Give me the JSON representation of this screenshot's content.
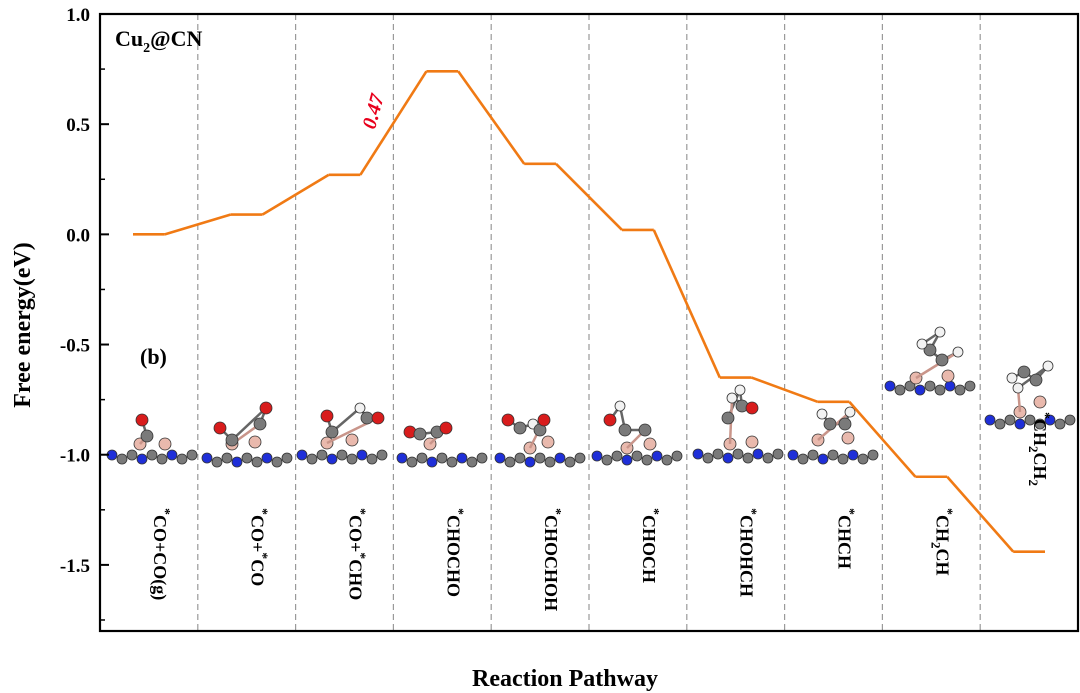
{
  "chart_data": {
    "type": "line",
    "title": "",
    "panel_title": "Cu2@CN",
    "panel_title_main": "Cu",
    "panel_title_sub": "2",
    "panel_title_rest": "@CN",
    "panel_label": "(b)",
    "xlabel": "Reaction Pathway",
    "ylabel": "Free energy(eV)",
    "ylim": [
      -1.8,
      1.0
    ],
    "yticks": [
      1.0,
      0.5,
      0.0,
      -0.5,
      -1.0,
      -1.5
    ],
    "ytick_labels": [
      "1.0",
      "0.5",
      "0.0",
      "-0.5",
      "-1.0",
      "-1.5"
    ],
    "grid": "vertical dashed separators",
    "line_color": "#f07a14",
    "annotation_color": "#e8001c",
    "steps": [
      {
        "label": "*CO+CO(g)",
        "energy": 0.0
      },
      {
        "label": "*CO+*CO",
        "energy": 0.09
      },
      {
        "label": "*CO+*CHO",
        "energy": 0.27
      },
      {
        "label": "*CHOCHO",
        "energy": 0.74
      },
      {
        "label": "*CHOCHOH",
        "energy": 0.32
      },
      {
        "label": "*CHOCH",
        "energy": 0.02
      },
      {
        "label": "*CHOHCH",
        "energy": -0.65
      },
      {
        "label": "*CHCH",
        "energy": -0.76
      },
      {
        "label": "*CH2CH",
        "energy": -1.1
      },
      {
        "label": "*CH2CH2",
        "energy": -1.44
      }
    ],
    "annotations": [
      {
        "text": "0.47",
        "between_steps": [
          "*CO+*CHO",
          "*CHOCHO"
        ]
      }
    ]
  }
}
